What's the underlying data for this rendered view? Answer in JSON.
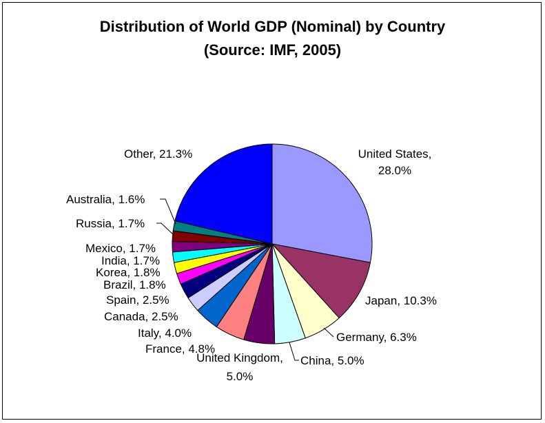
{
  "chart_data": {
    "type": "pie",
    "title": "Distribution of World GDP (Nominal) by Country",
    "subtitle": "(Source:  IMF, 2005)",
    "start_angle_deg": 90,
    "direction": "clockwise",
    "slices": [
      {
        "name": "United States",
        "value": 28.0,
        "label": "United States,",
        "label2": "28.0%",
        "color": "#9999FF"
      },
      {
        "name": "Japan",
        "value": 10.3,
        "label": "Japan, 10.3%",
        "color": "#993366"
      },
      {
        "name": "Germany",
        "value": 6.3,
        "label": "Germany, 6.3%",
        "color": "#FFFFCC"
      },
      {
        "name": "China",
        "value": 5.0,
        "label": "China, 5.0%",
        "color": "#CCFFFF"
      },
      {
        "name": "United Kingdom",
        "value": 5.0,
        "label": "United Kingdom,",
        "label2": "5.0%",
        "color": "#660066"
      },
      {
        "name": "France",
        "value": 4.8,
        "label": "France, 4.8%",
        "color": "#FF8080"
      },
      {
        "name": "Italy",
        "value": 4.0,
        "label": "Italy, 4.0%",
        "color": "#0066CC"
      },
      {
        "name": "Canada",
        "value": 2.5,
        "label": "Canada, 2.5%",
        "color": "#CCCCFF"
      },
      {
        "name": "Spain",
        "value": 2.5,
        "label": "Spain, 2.5%",
        "color": "#000080"
      },
      {
        "name": "Brazil",
        "value": 1.8,
        "label": "Brazil, 1.8%",
        "color": "#FF00FF"
      },
      {
        "name": "Korea",
        "value": 1.8,
        "label": "Korea, 1.8%",
        "color": "#FFFF00"
      },
      {
        "name": "India",
        "value": 1.7,
        "label": "India, 1.7%",
        "color": "#00FFFF"
      },
      {
        "name": "Mexico",
        "value": 1.7,
        "label": "Mexico, 1.7%",
        "color": "#800080"
      },
      {
        "name": "Russia",
        "value": 1.7,
        "label": "Russia, 1.7%",
        "color": "#800000"
      },
      {
        "name": "Australia",
        "value": 1.6,
        "label": "Australia, 1.6%",
        "color": "#008080"
      },
      {
        "name": "Other",
        "value": 21.3,
        "label": "Other, 21.3%",
        "color": "#0000FF"
      }
    ]
  }
}
